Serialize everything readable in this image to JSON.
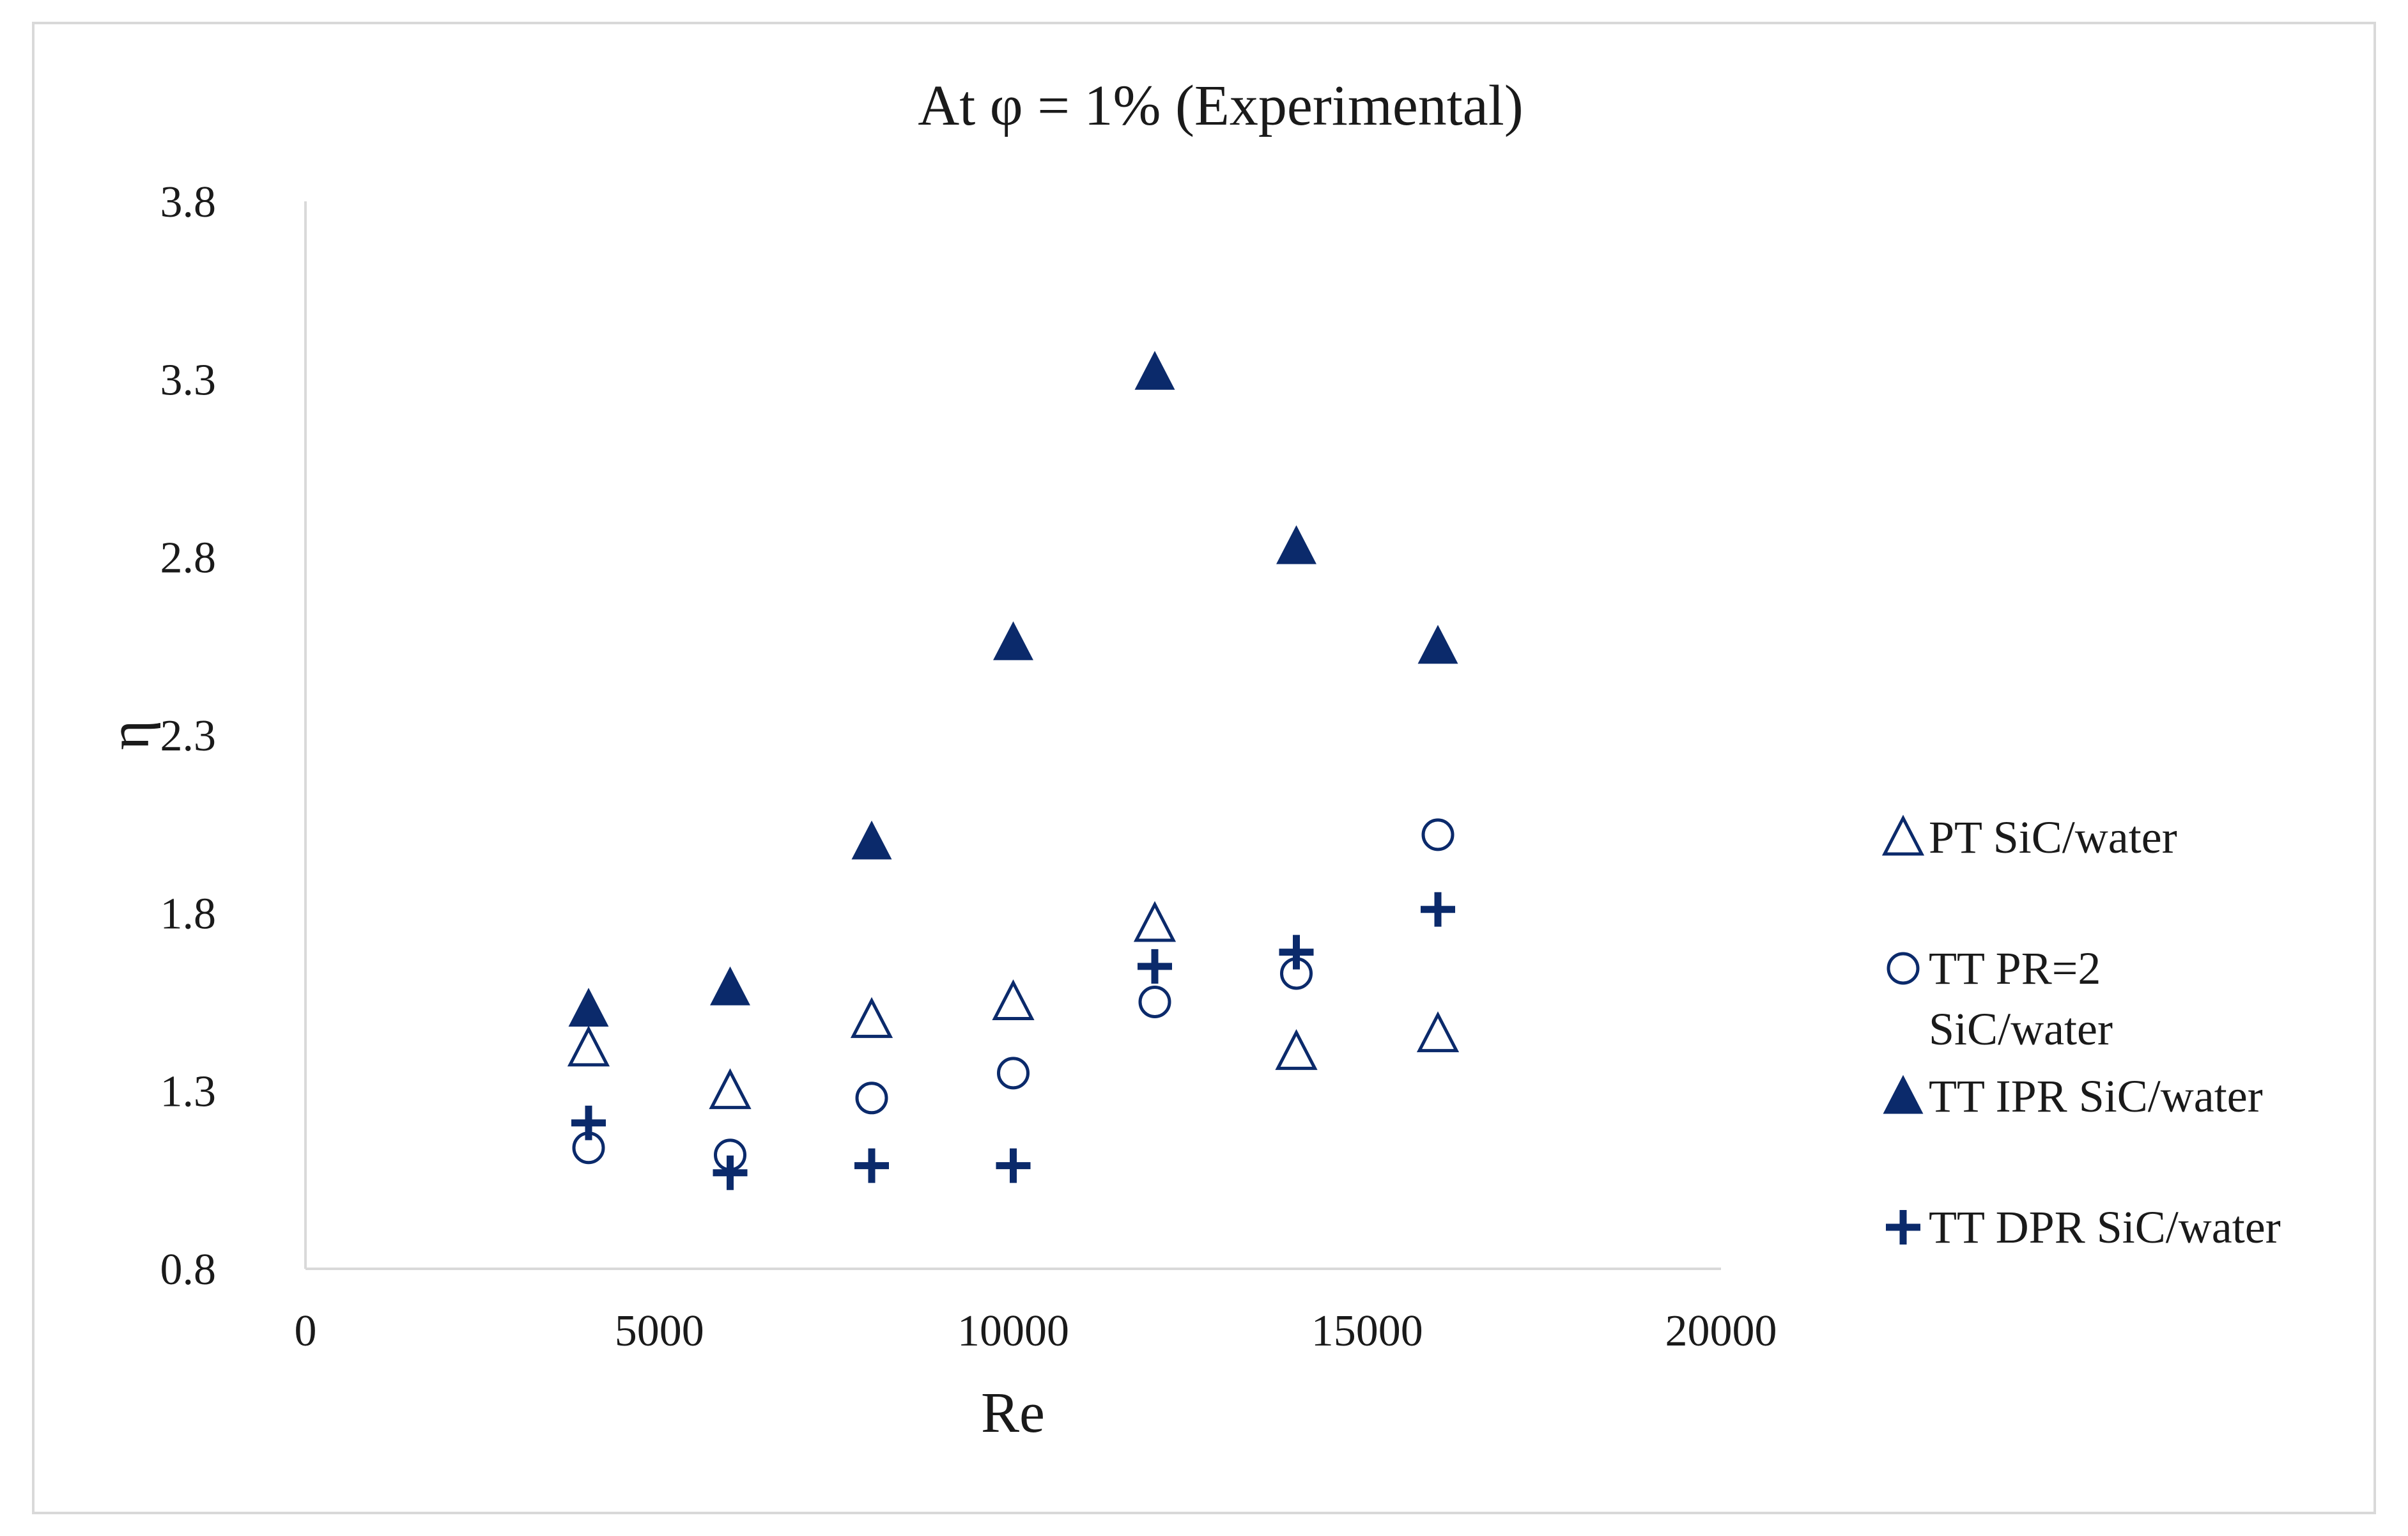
{
  "chart_data": {
    "type": "scatter",
    "title": "At φ = 1% (Experimental)",
    "xlabel": "Re",
    "ylabel": "η",
    "xlim": [
      0,
      20000
    ],
    "ylim": [
      0.8,
      3.8
    ],
    "xticks": [
      "0",
      "5000",
      "10000",
      "15000",
      "20000"
    ],
    "yticks": [
      "0.8",
      "1.3",
      "1.8",
      "2.3",
      "2.8",
      "3.3",
      "3.8"
    ],
    "grid": false,
    "legend_position": "right",
    "marker_color": "#0b2a6b",
    "series": [
      {
        "name": "PT SiC/water",
        "marker": "open-triangle",
        "x": [
          4000,
          6000,
          8000,
          10000,
          12000,
          14000,
          16000
        ],
        "y": [
          1.42,
          1.3,
          1.5,
          1.55,
          1.77,
          1.41,
          1.46
        ]
      },
      {
        "name": "TT PR=2 SiC/water",
        "legend_lines": [
          "TT PR=2",
          "SiC/water"
        ],
        "marker": "open-circle",
        "x": [
          4000,
          6000,
          8000,
          10000,
          12000,
          14000,
          16000
        ],
        "y": [
          1.14,
          1.12,
          1.28,
          1.35,
          1.55,
          1.63,
          2.02
        ]
      },
      {
        "name": "TT IPR SiC/water",
        "marker": "filled-triangle",
        "x": [
          4000,
          6000,
          8000,
          10000,
          12000,
          14000,
          16000
        ],
        "y": [
          1.53,
          1.59,
          2.0,
          2.56,
          3.32,
          2.83,
          2.55
        ]
      },
      {
        "name": "TT DPR SiC/water",
        "marker": "plus",
        "x": [
          4000,
          6000,
          8000,
          10000,
          12000,
          14000,
          16000
        ],
        "y": [
          1.21,
          1.07,
          1.09,
          1.09,
          1.65,
          1.69,
          1.81
        ]
      }
    ]
  }
}
